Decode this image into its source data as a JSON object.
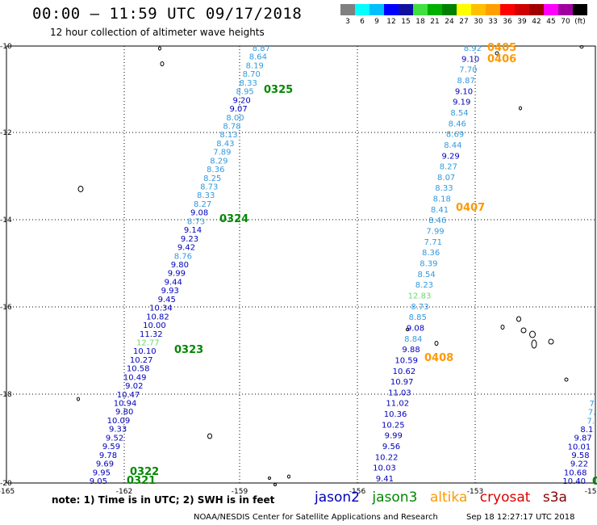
{
  "title": "00:00 – 11:59 UTC 09/17/2018",
  "subtitle": "12 hour collection of altimeter wave heights",
  "legend": {
    "colors": [
      "#808080",
      "#00ffff",
      "#00bfff",
      "#0000ff",
      "#1010a0",
      "#40e040",
      "#00b000",
      "#008000",
      "#ffff00",
      "#ffc000",
      "#ffa000",
      "#ff0000",
      "#d00000",
      "#a00000",
      "#ff00ff",
      "#a000a0",
      "#000000"
    ],
    "labels": [
      "3",
      "6",
      "9",
      "12",
      "15",
      "18",
      "21",
      "24",
      "27",
      "30",
      "33",
      "36",
      "39",
      "42",
      "45",
      "70",
      "(ft)"
    ]
  },
  "axes": {
    "lat_ticks": [
      "-10",
      "-12",
      "-14",
      "-16",
      "-18",
      "-20"
    ],
    "lon_ticks": [
      "-165",
      "-162",
      "-159",
      "-156",
      "-153",
      "-150"
    ]
  },
  "colors": {
    "jason2": "#0000bb",
    "jason3": "#008800",
    "altika": "#ff9900",
    "cryosat": "#dd0000",
    "s3a": "#880000",
    "light": "#3399dd",
    "green": "#66dd66"
  },
  "track_a": {
    "values": [
      "8.87",
      "8.64",
      "8.19",
      "8.70",
      "8.33",
      "8.95",
      "9.20",
      "9.07",
      "8.00",
      "8.78",
      "8.13",
      "8.43",
      "7.89",
      "8.29",
      "8.36",
      "8.25",
      "8.73",
      "8.33",
      "8.27",
      "9.08",
      "8.73",
      "9.14",
      "9.23",
      "9.42",
      "8.76",
      "9.80",
      "9.99",
      "9.44",
      "9.93",
      "9.45",
      "10.34",
      "10.82",
      "10.00",
      "11.32",
      "12.77",
      "10.10",
      "10.27",
      "10.58",
      "10.49",
      "9.02",
      "10.47",
      "10.94",
      "9.80",
      "10.09",
      "9.33",
      "9.52",
      "9.59",
      "9.78",
      "9.69",
      "9.95",
      "9.05"
    ],
    "colors": [
      "l",
      "l",
      "l",
      "l",
      "l",
      "l",
      "d",
      "d",
      "l",
      "l",
      "l",
      "l",
      "l",
      "l",
      "l",
      "l",
      "l",
      "l",
      "l",
      "d",
      "l",
      "d",
      "d",
      "d",
      "l",
      "d",
      "d",
      "d",
      "d",
      "d",
      "d",
      "d",
      "d",
      "d",
      "g",
      "d",
      "d",
      "d",
      "d",
      "d",
      "d",
      "d",
      "d",
      "d",
      "d",
      "d",
      "d",
      "d",
      "d",
      "d",
      "d"
    ],
    "times": [
      "0325",
      "0324",
      "0323",
      "0322",
      "0321"
    ]
  },
  "track_b": {
    "values": [
      "8.92",
      "9.10",
      "7.70",
      "8.87",
      "9.10",
      "9.19",
      "8.54",
      "8.46",
      "8.69",
      "8.44",
      "9.29",
      "8.27",
      "8.07",
      "8.33",
      "8.18",
      "8.41",
      "8.46",
      "7.99",
      "7.71",
      "8.36",
      "8.39",
      "8.54",
      "8.23",
      "12.83",
      "8.73",
      "8.85",
      "9.08",
      "8.84",
      "9.88",
      "10.59",
      "10.62",
      "10.97",
      "11.03",
      "11.02",
      "10.36",
      "10.25",
      "9.99",
      "9.56",
      "10.22",
      "10.03",
      "9.41"
    ],
    "colors": [
      "l",
      "d",
      "l",
      "l",
      "d",
      "d",
      "l",
      "l",
      "l",
      "l",
      "d",
      "l",
      "l",
      "l",
      "l",
      "l",
      "l",
      "l",
      "l",
      "l",
      "l",
      "l",
      "l",
      "g",
      "l",
      "l",
      "d",
      "l",
      "d",
      "d",
      "d",
      "d",
      "d",
      "d",
      "d",
      "d",
      "d",
      "d",
      "d",
      "d",
      "d"
    ],
    "times": [
      "0405",
      "0406",
      "0407",
      "0408"
    ]
  },
  "track_c": {
    "values": [
      "7.",
      "7.",
      "7.",
      "8.1",
      "9.87",
      "10.01",
      "9.58",
      "9.22",
      "10.68",
      "10.40"
    ],
    "colors": [
      "l",
      "l",
      "l",
      "d",
      "d",
      "d",
      "d",
      "d",
      "d",
      "d"
    ],
    "times": [
      "0"
    ]
  },
  "note": "note: 1) Time is in UTC; 2) SWH is in feet",
  "satellites": [
    "jason2",
    "jason3",
    "altika",
    "cryosat",
    "s3a"
  ],
  "credit": "NOAA/NESDIS Center for Satellite Applications and Research",
  "timestamp": "Sep 18 12:27:17 UTC 2018"
}
